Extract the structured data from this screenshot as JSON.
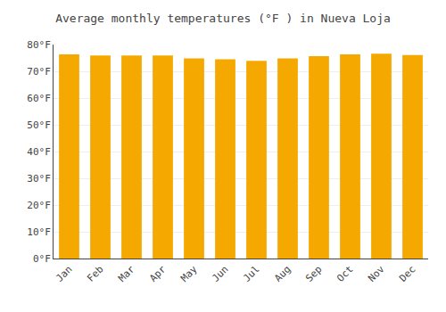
{
  "chart_data": {
    "type": "bar",
    "title": "Average monthly temperatures (°F ) in Nueva Loja",
    "categories": [
      "Jan",
      "Feb",
      "Mar",
      "Apr",
      "May",
      "Jun",
      "Jul",
      "Aug",
      "Sep",
      "Oct",
      "Nov",
      "Dec"
    ],
    "values": [
      76.3,
      75.9,
      75.9,
      75.9,
      74.8,
      74.5,
      73.9,
      74.8,
      75.7,
      76.3,
      76.6,
      76.1
    ],
    "color": "#F5A800",
    "ylim": [
      0,
      80
    ],
    "yticks": [
      {
        "value": 0,
        "label": "0°F"
      },
      {
        "value": 10,
        "label": "10°F"
      },
      {
        "value": 20,
        "label": "20°F"
      },
      {
        "value": 30,
        "label": "30°F"
      },
      {
        "value": 40,
        "label": "40°F"
      },
      {
        "value": 50,
        "label": "50°F"
      },
      {
        "value": 60,
        "label": "60°F"
      },
      {
        "value": 70,
        "label": "70°F"
      },
      {
        "value": 80,
        "label": "80°F"
      }
    ],
    "grid": true
  }
}
